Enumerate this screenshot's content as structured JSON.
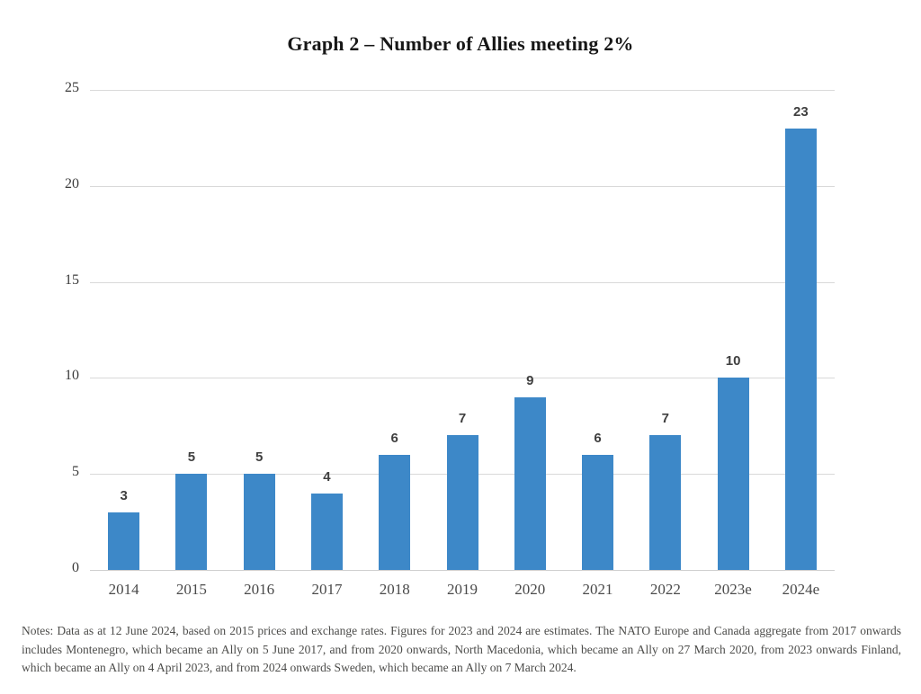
{
  "title": "Graph 2 – Number of Allies meeting 2%",
  "chart_data": {
    "type": "bar",
    "title": "Graph 2 – Number of Allies meeting 2%",
    "categories": [
      "2014",
      "2015",
      "2016",
      "2017",
      "2018",
      "2019",
      "2020",
      "2021",
      "2022",
      "2023e",
      "2024e"
    ],
    "values": [
      3,
      5,
      5,
      4,
      6,
      7,
      9,
      6,
      7,
      10,
      23
    ],
    "xlabel": "",
    "ylabel": "",
    "ylim": [
      0,
      25
    ],
    "yticks": [
      0,
      5,
      10,
      15,
      20,
      25
    ],
    "grid": true,
    "legend": "none",
    "bar_color": "#3d88c8",
    "data_labels": true
  },
  "notes": "Notes: Data as at 12 June 2024, based on 2015 prices and exchange rates. Figures for 2023 and 2024 are estimates. The NATO Europe and Canada aggregate from 2017 onwards includes Montenegro, which became an Ally on 5 June 2017, and from 2020 onwards, North Macedonia, which became an Ally on 27 March 2020, from 2023 onwards Finland, which became an Ally on 4 April 2023, and from 2024 onwards Sweden, which became an Ally on 7 March 2024."
}
